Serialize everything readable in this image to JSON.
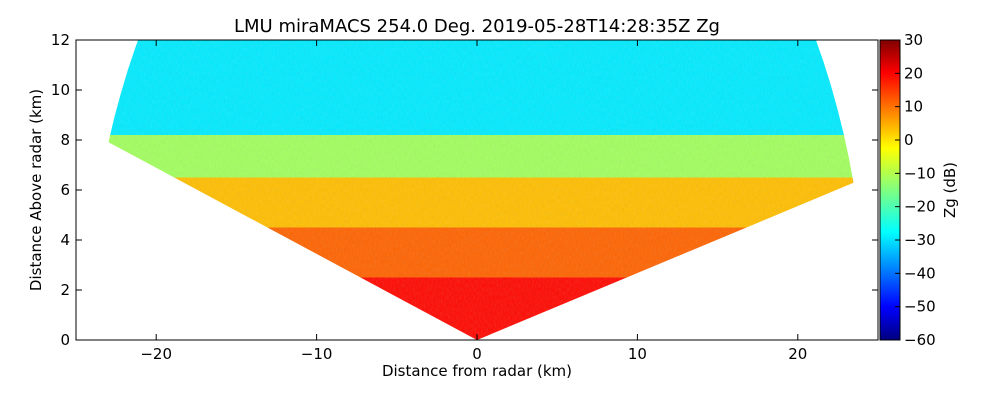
{
  "chart_data": {
    "type": "heatmap",
    "title": "LMU miraMACS 254.0 Deg. 2019-05-28T14:28:35Z  Zg",
    "xlabel": "Distance from radar (km)",
    "ylabel": "Distance Above radar  (km)",
    "xlim": [
      -25,
      25
    ],
    "ylim": [
      0,
      12
    ],
    "x_ticks": [
      -20,
      -10,
      0,
      10,
      20
    ],
    "x_tick_labels": [
      "−20",
      "−10",
      "0",
      "10",
      "20"
    ],
    "y_ticks": [
      0,
      2,
      4,
      6,
      8,
      10,
      12
    ],
    "y_tick_labels": [
      "0",
      "2",
      "4",
      "6",
      "8",
      "10",
      "12"
    ],
    "colorbar": {
      "label": "Zg (dB)",
      "min": -60,
      "max": 30,
      "ticks": [
        30,
        20,
        10,
        0,
        -10,
        -20,
        -30,
        -40,
        -50,
        -60
      ],
      "tick_labels": [
        "30",
        "20",
        "10",
        "0",
        "−10",
        "−20",
        "−30",
        "−40",
        "−50",
        "−60"
      ],
      "colormap": "jet"
    },
    "field": {
      "scan_angle_range_deg": [
        15,
        161
      ],
      "max_range_km": 24.3,
      "layers": [
        {
          "height_km": [
            0,
            2.5
          ],
          "zg_db": 18
        },
        {
          "height_km": [
            2.5,
            4.5
          ],
          "zg_db": 10
        },
        {
          "height_km": [
            4.5,
            6.5
          ],
          "zg_db": 2
        },
        {
          "height_km": [
            6.5,
            8.2
          ],
          "zg_db": -12
        },
        {
          "height_km": [
            8.2,
            12
          ],
          "zg_db": -28
        }
      ]
    }
  }
}
